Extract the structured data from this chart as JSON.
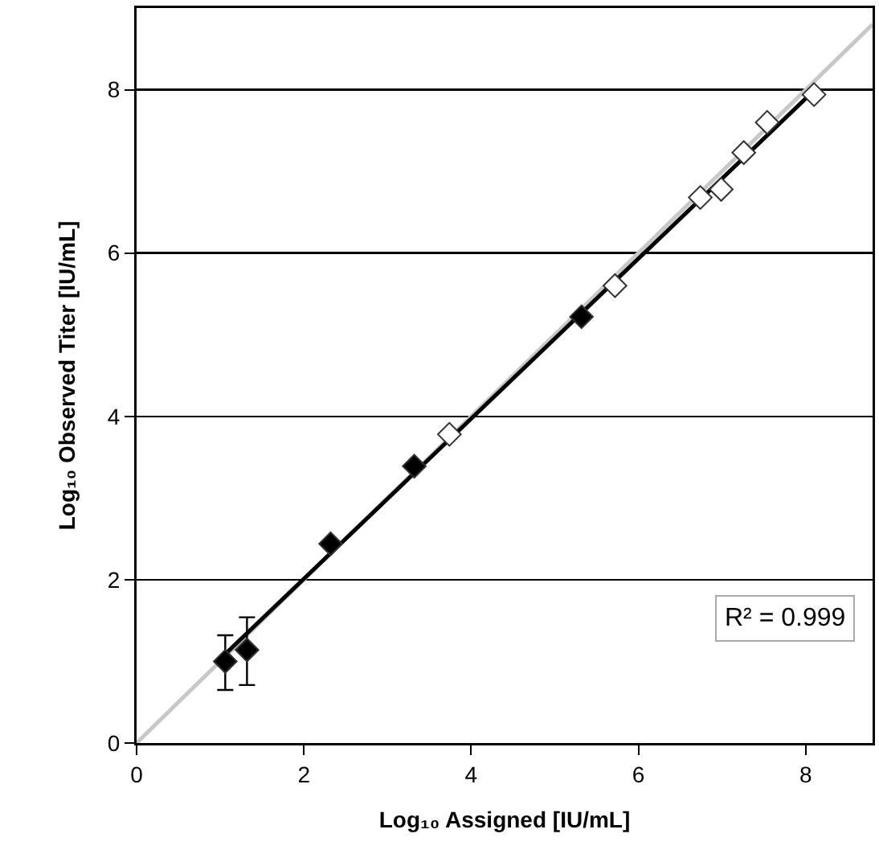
{
  "chart_data": {
    "type": "scatter",
    "xlabel": "Log₁₀ Assigned [IU/mL]",
    "ylabel": "Log₁₀ Observed Titer [IU/mL]",
    "xlim": [
      0,
      8.8
    ],
    "ylim": [
      0,
      9
    ],
    "xticks": [
      0,
      2,
      4,
      6,
      8
    ],
    "yticks": [
      0,
      2,
      4,
      6,
      8
    ],
    "grid": "y",
    "marker": "diamond",
    "series": [
      {
        "type": "line",
        "marker": "none",
        "color": "#c8c8c8",
        "x": [
          0,
          8.8
        ],
        "values": [
          0,
          8.8
        ]
      },
      {
        "type": "line",
        "marker": "none",
        "color": "#000000",
        "x": [
          1.05,
          8.1
        ],
        "values": [
          1.08,
          7.99
        ]
      },
      {
        "color": "#000000",
        "x": [
          1.06,
          1.32,
          2.32,
          3.32,
          5.32
        ],
        "values": [
          1.0,
          1.14,
          2.44,
          3.39,
          5.22
        ],
        "errors": [
          [
            0.65,
            1.32
          ],
          [
            0.71,
            1.54
          ],
          null,
          null,
          null
        ]
      },
      {
        "color": "#ffffff",
        "x": [
          3.74,
          5.72,
          6.74,
          6.99,
          7.26,
          7.54,
          8.1
        ],
        "values": [
          3.78,
          5.6,
          6.68,
          6.78,
          7.23,
          7.6,
          7.94
        ]
      }
    ],
    "annotations": [
      "R² = 0.999"
    ]
  }
}
